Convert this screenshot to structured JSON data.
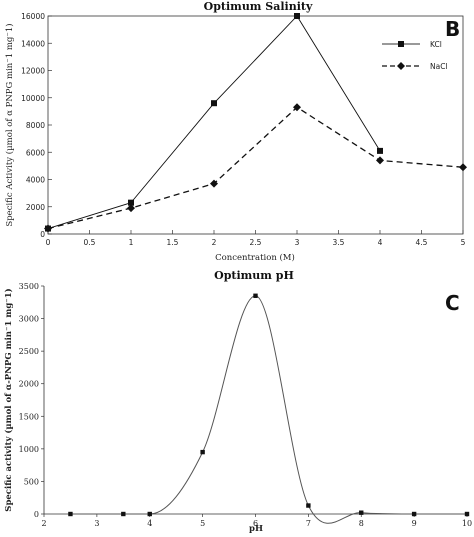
{
  "chart_data": [
    {
      "type": "line",
      "title": "Optimum Salinity",
      "panel_label": "B",
      "xlabel": "Concentration (M)",
      "ylabel": "Specific Activity (µmol of α PNPG min⁻1 mg⁻1)",
      "xlim": [
        0,
        5
      ],
      "ylim": [
        0,
        16000
      ],
      "x_ticks": [
        "0",
        "0.5",
        "1",
        "1.5",
        "2",
        "2.5",
        "3",
        "3.5",
        "4",
        "4.5",
        "5"
      ],
      "y_ticks": [
        "0",
        "2000",
        "4000",
        "6000",
        "8000",
        "10000",
        "12000",
        "14000",
        "16000"
      ],
      "grid": false,
      "legend_position": "top-right",
      "series": [
        {
          "name": "KCl",
          "x": [
            0,
            1,
            2,
            3,
            4
          ],
          "values": [
            400,
            2300,
            9600,
            16000,
            6100
          ],
          "style": "solid",
          "marker": "square"
        },
        {
          "name": "NaCl",
          "x": [
            0,
            1,
            2,
            3,
            4,
            5
          ],
          "values": [
            400,
            1900,
            3700,
            9300,
            5400,
            4900
          ],
          "style": "dashed",
          "marker": "diamond"
        }
      ]
    },
    {
      "type": "line",
      "title": "Optimum pH",
      "panel_label": "C",
      "xlabel": "pH",
      "ylabel": "Specific activity (µmol of α-PNPG min⁻1 mg⁻1)",
      "xlim": [
        2,
        10
      ],
      "ylim": [
        0,
        3500
      ],
      "x_ticks": [
        "2",
        "3",
        "4",
        "5",
        "6",
        "7",
        "8",
        "9",
        "10"
      ],
      "y_ticks": [
        "0",
        "500",
        "1000",
        "1500",
        "2000",
        "2500",
        "3000",
        "3500"
      ],
      "grid": false,
      "series": [
        {
          "name": "",
          "x": [
            2.5,
            3.5,
            4,
            5,
            6,
            7,
            8,
            9,
            10
          ],
          "values": [
            0,
            0,
            0,
            950,
            3350,
            130,
            20,
            0,
            0
          ],
          "style": "solid-smooth",
          "marker": "square"
        }
      ]
    }
  ]
}
